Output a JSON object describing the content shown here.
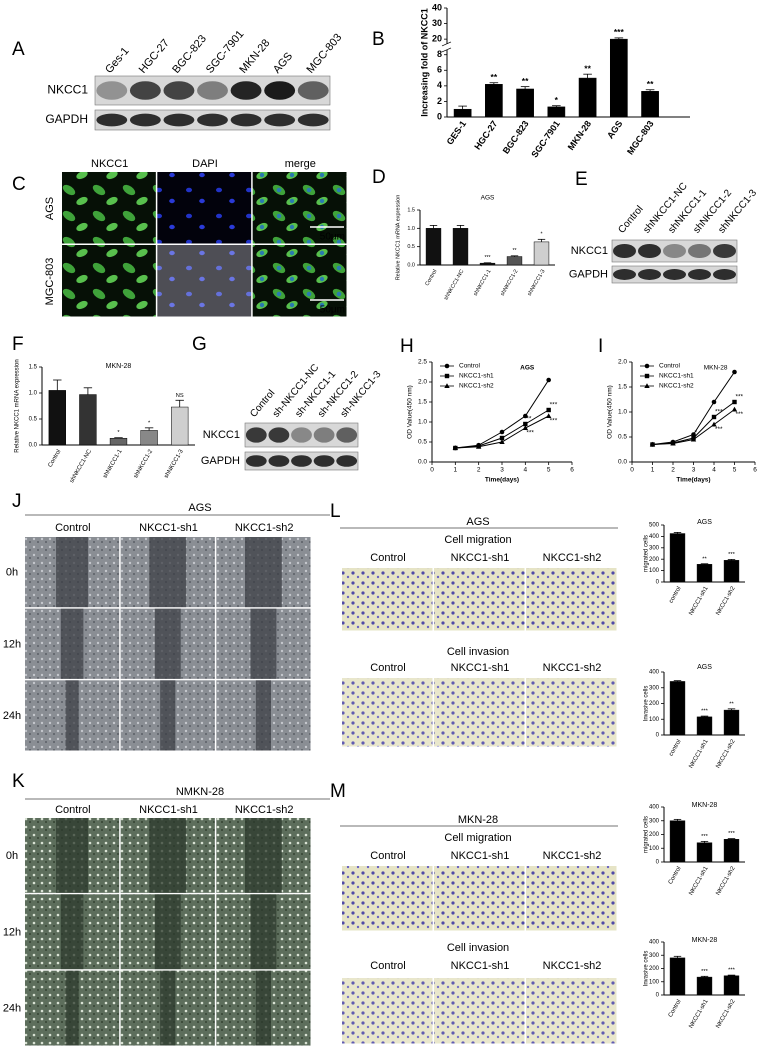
{
  "figure": {
    "A": {
      "letter": "A",
      "lanes": [
        "Ges-1",
        "HGC-27",
        "BGC-823",
        "SGC-7901",
        "MKN-28",
        "AGS",
        "MGC-803"
      ],
      "rows": [
        "NKCC1",
        "GAPDH"
      ]
    },
    "C": {
      "letter": "C",
      "columns": [
        "NKCC1",
        "DAPI",
        "merge"
      ],
      "rows": [
        "AGS",
        "MGC-803"
      ],
      "scale_bar": "50μm"
    },
    "E": {
      "letter": "E",
      "lanes": [
        "Control",
        "shNKCC1-NC",
        "shNKCC1-1",
        "shNKCC1-2",
        "shNKCC1-3"
      ],
      "rows": [
        "NKCC1",
        "GAPDH"
      ]
    },
    "G": {
      "letter": "G",
      "lanes": [
        "Control",
        "sh-NKCC1-NC",
        "sh-NKCC1-1",
        "sh-NKCC1-2",
        "sh-NKCC1-3"
      ],
      "rows": [
        "NKCC1",
        "GAPDH"
      ]
    },
    "J": {
      "letter": "J",
      "title": "AGS",
      "columns": [
        "Control",
        "NKCC1-sh1",
        "NKCC1-sh2"
      ],
      "rows": [
        "0h",
        "12h",
        "24h"
      ]
    },
    "K": {
      "letter": "K",
      "title": "NMKN-28",
      "columns": [
        "Control",
        "NKCC1-sh1",
        "NKCC1-sh2"
      ],
      "rows": [
        "0h",
        "12h",
        "24h"
      ]
    },
    "L": {
      "letter": "L",
      "title": "AGS",
      "sections": [
        {
          "title": "Cell migration",
          "columns": [
            "Control",
            "NKCC1-sh1",
            "NKCC1-sh2"
          ]
        },
        {
          "title": "Cell invasion",
          "columns": [
            "Control",
            "NKCC1-sh1",
            "NKCC1-sh2"
          ]
        }
      ]
    },
    "M": {
      "letter": "M",
      "title": "MKN-28",
      "sections": [
        {
          "title": "Cell migration",
          "columns": [
            "Control",
            "NKCC1-sh1",
            "NKCC1-sh2"
          ]
        },
        {
          "title": "Cell invasion",
          "columns": [
            "Control",
            "NKCC1-sh1",
            "NKCC1-sh2"
          ]
        }
      ]
    }
  },
  "chart_data": [
    {
      "panel": "B",
      "type": "bar",
      "ylabel": "Increasing fold of NKCC1",
      "categories": [
        "GES-1",
        "HGC-27",
        "BGC-823",
        "SGC-7901",
        "MKN-28",
        "AGS",
        "MGC-803"
      ],
      "values": [
        1,
        4.2,
        3.6,
        1.3,
        5,
        20,
        3.3
      ],
      "errors": [
        0.4,
        0.2,
        0.3,
        0.15,
        0.5,
        0.8,
        0.2
      ],
      "annotations": [
        null,
        "**",
        "**",
        "*",
        "**",
        "***",
        "**"
      ],
      "ylim": [
        0,
        40
      ],
      "yticks": [
        0,
        2,
        4,
        6,
        8,
        20,
        30,
        40
      ],
      "axis_break": true,
      "color": "#000000"
    },
    {
      "panel": "D",
      "type": "bar",
      "title": "AGS",
      "ylabel": "Relative NKCC1 mRNA expression",
      "categories": [
        "Control",
        "shNKCC1-NC",
        "shNKCC1-1",
        "shNKCC1-2",
        "shNKCC1-3"
      ],
      "values": [
        1,
        1,
        0.05,
        0.23,
        0.63
      ],
      "errors": [
        0.08,
        0.08,
        0.01,
        0.02,
        0.07
      ],
      "annotations": [
        null,
        null,
        "***",
        "**",
        "*"
      ],
      "ylim": [
        0,
        1.5
      ],
      "yticks": [
        {
          "value": 0,
          "label": "0.0"
        },
        {
          "value": 0.5,
          "label": "0.5"
        },
        {
          "value": 1,
          "label": "1.0"
        },
        {
          "value": 1.5,
          "label": "1.5"
        }
      ],
      "colors": [
        "#111111",
        "#111111",
        "#111111",
        "#555555",
        "#cfcfcf"
      ]
    },
    {
      "panel": "F",
      "type": "bar",
      "title": "MKN-28",
      "ylabel": "Relative NKCC1 mRNA expression",
      "categories": [
        "Control",
        "shNKCC1-NC",
        "shNKCC1-1",
        "shNKCC1-2",
        "shNKCC1-3"
      ],
      "values": [
        1.05,
        0.97,
        0.13,
        0.28,
        0.73
      ],
      "errors": [
        0.2,
        0.13,
        0.01,
        0.05,
        0.13
      ],
      "annotations": [
        null,
        null,
        "*",
        "*",
        "NS"
      ],
      "ylim": [
        0,
        1.5
      ],
      "yticks": [
        {
          "value": 0,
          "label": "0.0"
        },
        {
          "value": 0.5,
          "label": "0.5"
        },
        {
          "value": 1,
          "label": "1.0"
        },
        {
          "value": 1.5,
          "label": "1.5"
        }
      ],
      "colors": [
        "#111111",
        "#333333",
        "#666666",
        "#888888",
        "#cfcfcf"
      ]
    },
    {
      "panel": "H",
      "type": "line",
      "title": "AGS",
      "xlabel": "Time(days)",
      "ylabel": "OD Value(450 nm)",
      "x": [
        1,
        2,
        3,
        4,
        5
      ],
      "series": [
        {
          "name": "Control",
          "color": "#000000",
          "marker": "circle",
          "values": [
            0.35,
            0.42,
            0.75,
            1.15,
            2.05
          ]
        },
        {
          "name": "NKCC1-sh1",
          "color": "#000000",
          "marker": "square",
          "values": [
            0.35,
            0.4,
            0.6,
            0.95,
            1.3
          ]
        },
        {
          "name": "NKCC1-sh2",
          "color": "#000000",
          "marker": "triangle",
          "values": [
            0.35,
            0.38,
            0.5,
            0.85,
            1.15
          ]
        }
      ],
      "annotations": [
        {
          "x": 4,
          "labels": [
            "**",
            "***"
          ]
        },
        {
          "x": 5,
          "labels": [
            "***",
            "***"
          ]
        }
      ],
      "xlim": [
        0,
        6
      ],
      "xticks": [
        0,
        1,
        2,
        3,
        4,
        5,
        6
      ],
      "ylim": [
        0,
        2.5
      ],
      "yticks": [
        {
          "value": 0,
          "label": "0.0"
        },
        {
          "value": 0.5,
          "label": "0.5"
        },
        {
          "value": 1,
          "label": "1.0"
        },
        {
          "value": 1.5,
          "label": "1.5"
        },
        {
          "value": 2,
          "label": "2.0"
        },
        {
          "value": 2.5,
          "label": "2.5"
        }
      ]
    },
    {
      "panel": "I",
      "type": "line",
      "title": "MKN-28",
      "xlabel": "Time(days)",
      "ylabel": "OD Value(450 nm)",
      "x": [
        1,
        2,
        3,
        4,
        5
      ],
      "series": [
        {
          "name": "Control",
          "color": "#000000",
          "marker": "circle",
          "values": [
            0.35,
            0.4,
            0.55,
            1.2,
            1.8
          ]
        },
        {
          "name": "NKCC1-sh1",
          "color": "#000000",
          "marker": "square",
          "values": [
            0.35,
            0.38,
            0.48,
            0.9,
            1.2
          ]
        },
        {
          "name": "NKCC1-sh2",
          "color": "#000000",
          "marker": "triangle",
          "values": [
            0.35,
            0.37,
            0.45,
            0.75,
            1.05
          ]
        }
      ],
      "annotations": [
        {
          "x": 3,
          "labels": [
            "*"
          ]
        },
        {
          "x": 4,
          "labels": [
            "***",
            "***"
          ]
        },
        {
          "x": 5,
          "labels": [
            "***",
            "***"
          ]
        }
      ],
      "xlim": [
        0,
        6
      ],
      "xticks": [
        0,
        1,
        2,
        3,
        4,
        5,
        6
      ],
      "ylim": [
        0,
        2
      ],
      "yticks": [
        {
          "value": 0,
          "label": "0.0"
        },
        {
          "value": 0.5,
          "label": "0.5"
        },
        {
          "value": 1,
          "label": "1.0"
        },
        {
          "value": 1.5,
          "label": "1.5"
        },
        {
          "value": 2,
          "label": "2.0"
        }
      ]
    },
    {
      "type": "bar",
      "title": "AGS",
      "ylabel": "migrated cells",
      "categories": [
        "control",
        "NKCC1-sh1",
        "NKCC1-sh2"
      ],
      "values": [
        425,
        155,
        190
      ],
      "errors": [
        10,
        5,
        8
      ],
      "annotations": [
        null,
        "**",
        "***"
      ],
      "ylim": [
        0,
        500
      ],
      "yticks": [
        0,
        100,
        200,
        300,
        400,
        500
      ],
      "color": "#000000"
    },
    {
      "type": "bar",
      "title": "AGS",
      "ylabel": "Invasive cells",
      "categories": [
        "control",
        "NKCC1-sh1",
        "NKCC1-sh2"
      ],
      "values": [
        340,
        115,
        158
      ],
      "errors": [
        5,
        5,
        8
      ],
      "annotations": [
        null,
        "***",
        "**"
      ],
      "ylim": [
        0,
        400
      ],
      "yticks": [
        0,
        100,
        200,
        300,
        400
      ],
      "color": "#000000"
    },
    {
      "type": "bar",
      "title": "MKN-28",
      "ylabel": "migrated cells",
      "categories": [
        "Control",
        "NKCC1-sh1",
        "NKCC1-sh2"
      ],
      "values": [
        300,
        140,
        165
      ],
      "errors": [
        10,
        10,
        5
      ],
      "annotations": [
        null,
        "***",
        "***"
      ],
      "ylim": [
        0,
        400
      ],
      "yticks": [
        0,
        100,
        200,
        300,
        400
      ],
      "color": "#000000"
    },
    {
      "type": "bar",
      "title": "MKN-28",
      "ylabel": "Invasive cells",
      "categories": [
        "Control",
        "NKCC1-sh1",
        "NKCC1-sh2"
      ],
      "values": [
        280,
        135,
        145
      ],
      "errors": [
        12,
        6,
        5
      ],
      "annotations": [
        null,
        "***",
        "***"
      ],
      "ylim": [
        0,
        400
      ],
      "yticks": [
        0,
        100,
        200,
        300,
        400
      ],
      "color": "#000000"
    }
  ]
}
